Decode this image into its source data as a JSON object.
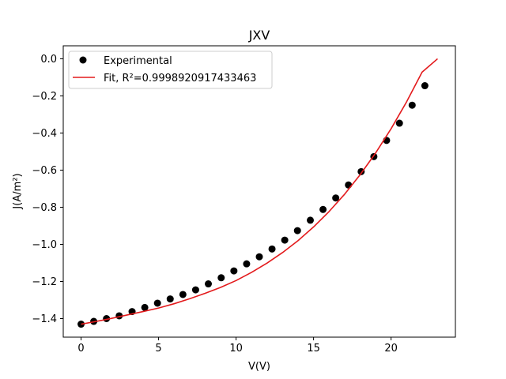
{
  "chart_data": {
    "type": "scatter",
    "title": "JXV",
    "xlabel": "V(V)",
    "ylabel": "J(A/m²)",
    "xlim": [
      -1.15,
      24.15
    ],
    "ylim": [
      -1.5,
      0.07
    ],
    "xticks": [
      0,
      5,
      10,
      15,
      20
    ],
    "xtick_labels": [
      "0",
      "5",
      "10",
      "15",
      "20"
    ],
    "yticks": [
      0.0,
      -0.2,
      -0.4,
      -0.6,
      -0.8,
      -1.0,
      -1.2,
      -1.4
    ],
    "ytick_labels": [
      "0.0",
      "−0.2",
      "−0.4",
      "−0.6",
      "−0.8",
      "−1.0",
      "−1.2",
      "−1.4"
    ],
    "grid": false,
    "legend_position": "top-left",
    "series": [
      {
        "name": "Experimental",
        "kind": "markers",
        "color": "#000000",
        "x": [
          0.0,
          0.82,
          1.64,
          2.46,
          3.29,
          4.11,
          4.93,
          5.75,
          6.57,
          7.39,
          8.21,
          9.04,
          9.86,
          10.68,
          11.5,
          12.32,
          13.14,
          13.96,
          14.79,
          15.61,
          16.43,
          17.25,
          18.07,
          18.89,
          19.71,
          20.54,
          21.36,
          22.18
        ],
        "y": [
          -1.43,
          -1.415,
          -1.4,
          -1.385,
          -1.362,
          -1.34,
          -1.317,
          -1.294,
          -1.27,
          -1.245,
          -1.213,
          -1.18,
          -1.143,
          -1.105,
          -1.067,
          -1.025,
          -0.977,
          -0.926,
          -0.87,
          -0.812,
          -0.75,
          -0.68,
          -0.608,
          -0.527,
          -0.44,
          -0.347,
          -0.25,
          -0.145
        ]
      },
      {
        "name": "Fit, R²=0.9998920917433463",
        "kind": "line",
        "color": "#e31a1c",
        "x": [
          0.0,
          1.0,
          2.0,
          3.0,
          4.0,
          5.0,
          6.0,
          7.0,
          8.0,
          9.0,
          10.0,
          11.0,
          12.0,
          13.0,
          14.0,
          15.0,
          16.0,
          17.0,
          18.0,
          19.0,
          20.0,
          21.0,
          22.0,
          23.0
        ],
        "y": [
          -1.43,
          -1.415,
          -1.398,
          -1.38,
          -1.362,
          -1.343,
          -1.32,
          -1.293,
          -1.264,
          -1.232,
          -1.195,
          -1.151,
          -1.101,
          -1.044,
          -0.98,
          -0.906,
          -0.823,
          -0.73,
          -0.625,
          -0.508,
          -0.377,
          -0.232,
          -0.072,
          0.0
        ]
      }
    ]
  }
}
